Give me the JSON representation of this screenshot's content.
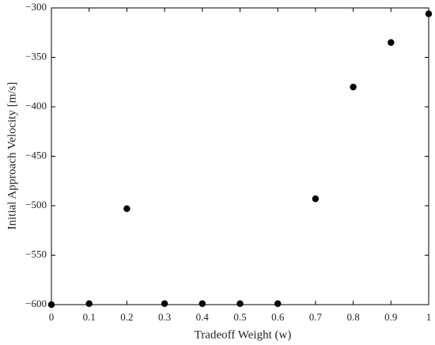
{
  "chart_data": {
    "type": "scatter",
    "xlabel": "Tradeoff Weight (w)",
    "ylabel": "Initial Approach Velocity [m/s]",
    "x": [
      0,
      0.1,
      0.2,
      0.3,
      0.4,
      0.5,
      0.6,
      0.7,
      0.8,
      0.9,
      1
    ],
    "series": [
      {
        "color": "#000000",
        "values": [
          -600,
          -599,
          -503,
          -599,
          -599,
          -599,
          -599,
          -493,
          -380,
          -335,
          -306
        ]
      }
    ],
    "xlim": [
      0,
      1
    ],
    "xticks": [
      0,
      0.1,
      0.2,
      0.3,
      0.4,
      0.5,
      0.6,
      0.7,
      0.8,
      0.9,
      1
    ],
    "ylim": [
      -600,
      -300
    ],
    "yticks": [
      {
        "value": -600,
        "label": "−600"
      },
      {
        "value": -550,
        "label": "−550"
      },
      {
        "value": -500,
        "label": "−500"
      },
      {
        "value": -450,
        "label": "−450"
      },
      {
        "value": -400,
        "label": "−400"
      },
      {
        "value": -350,
        "label": "−350"
      },
      {
        "value": -300,
        "label": "−300"
      }
    ],
    "grid": false
  }
}
